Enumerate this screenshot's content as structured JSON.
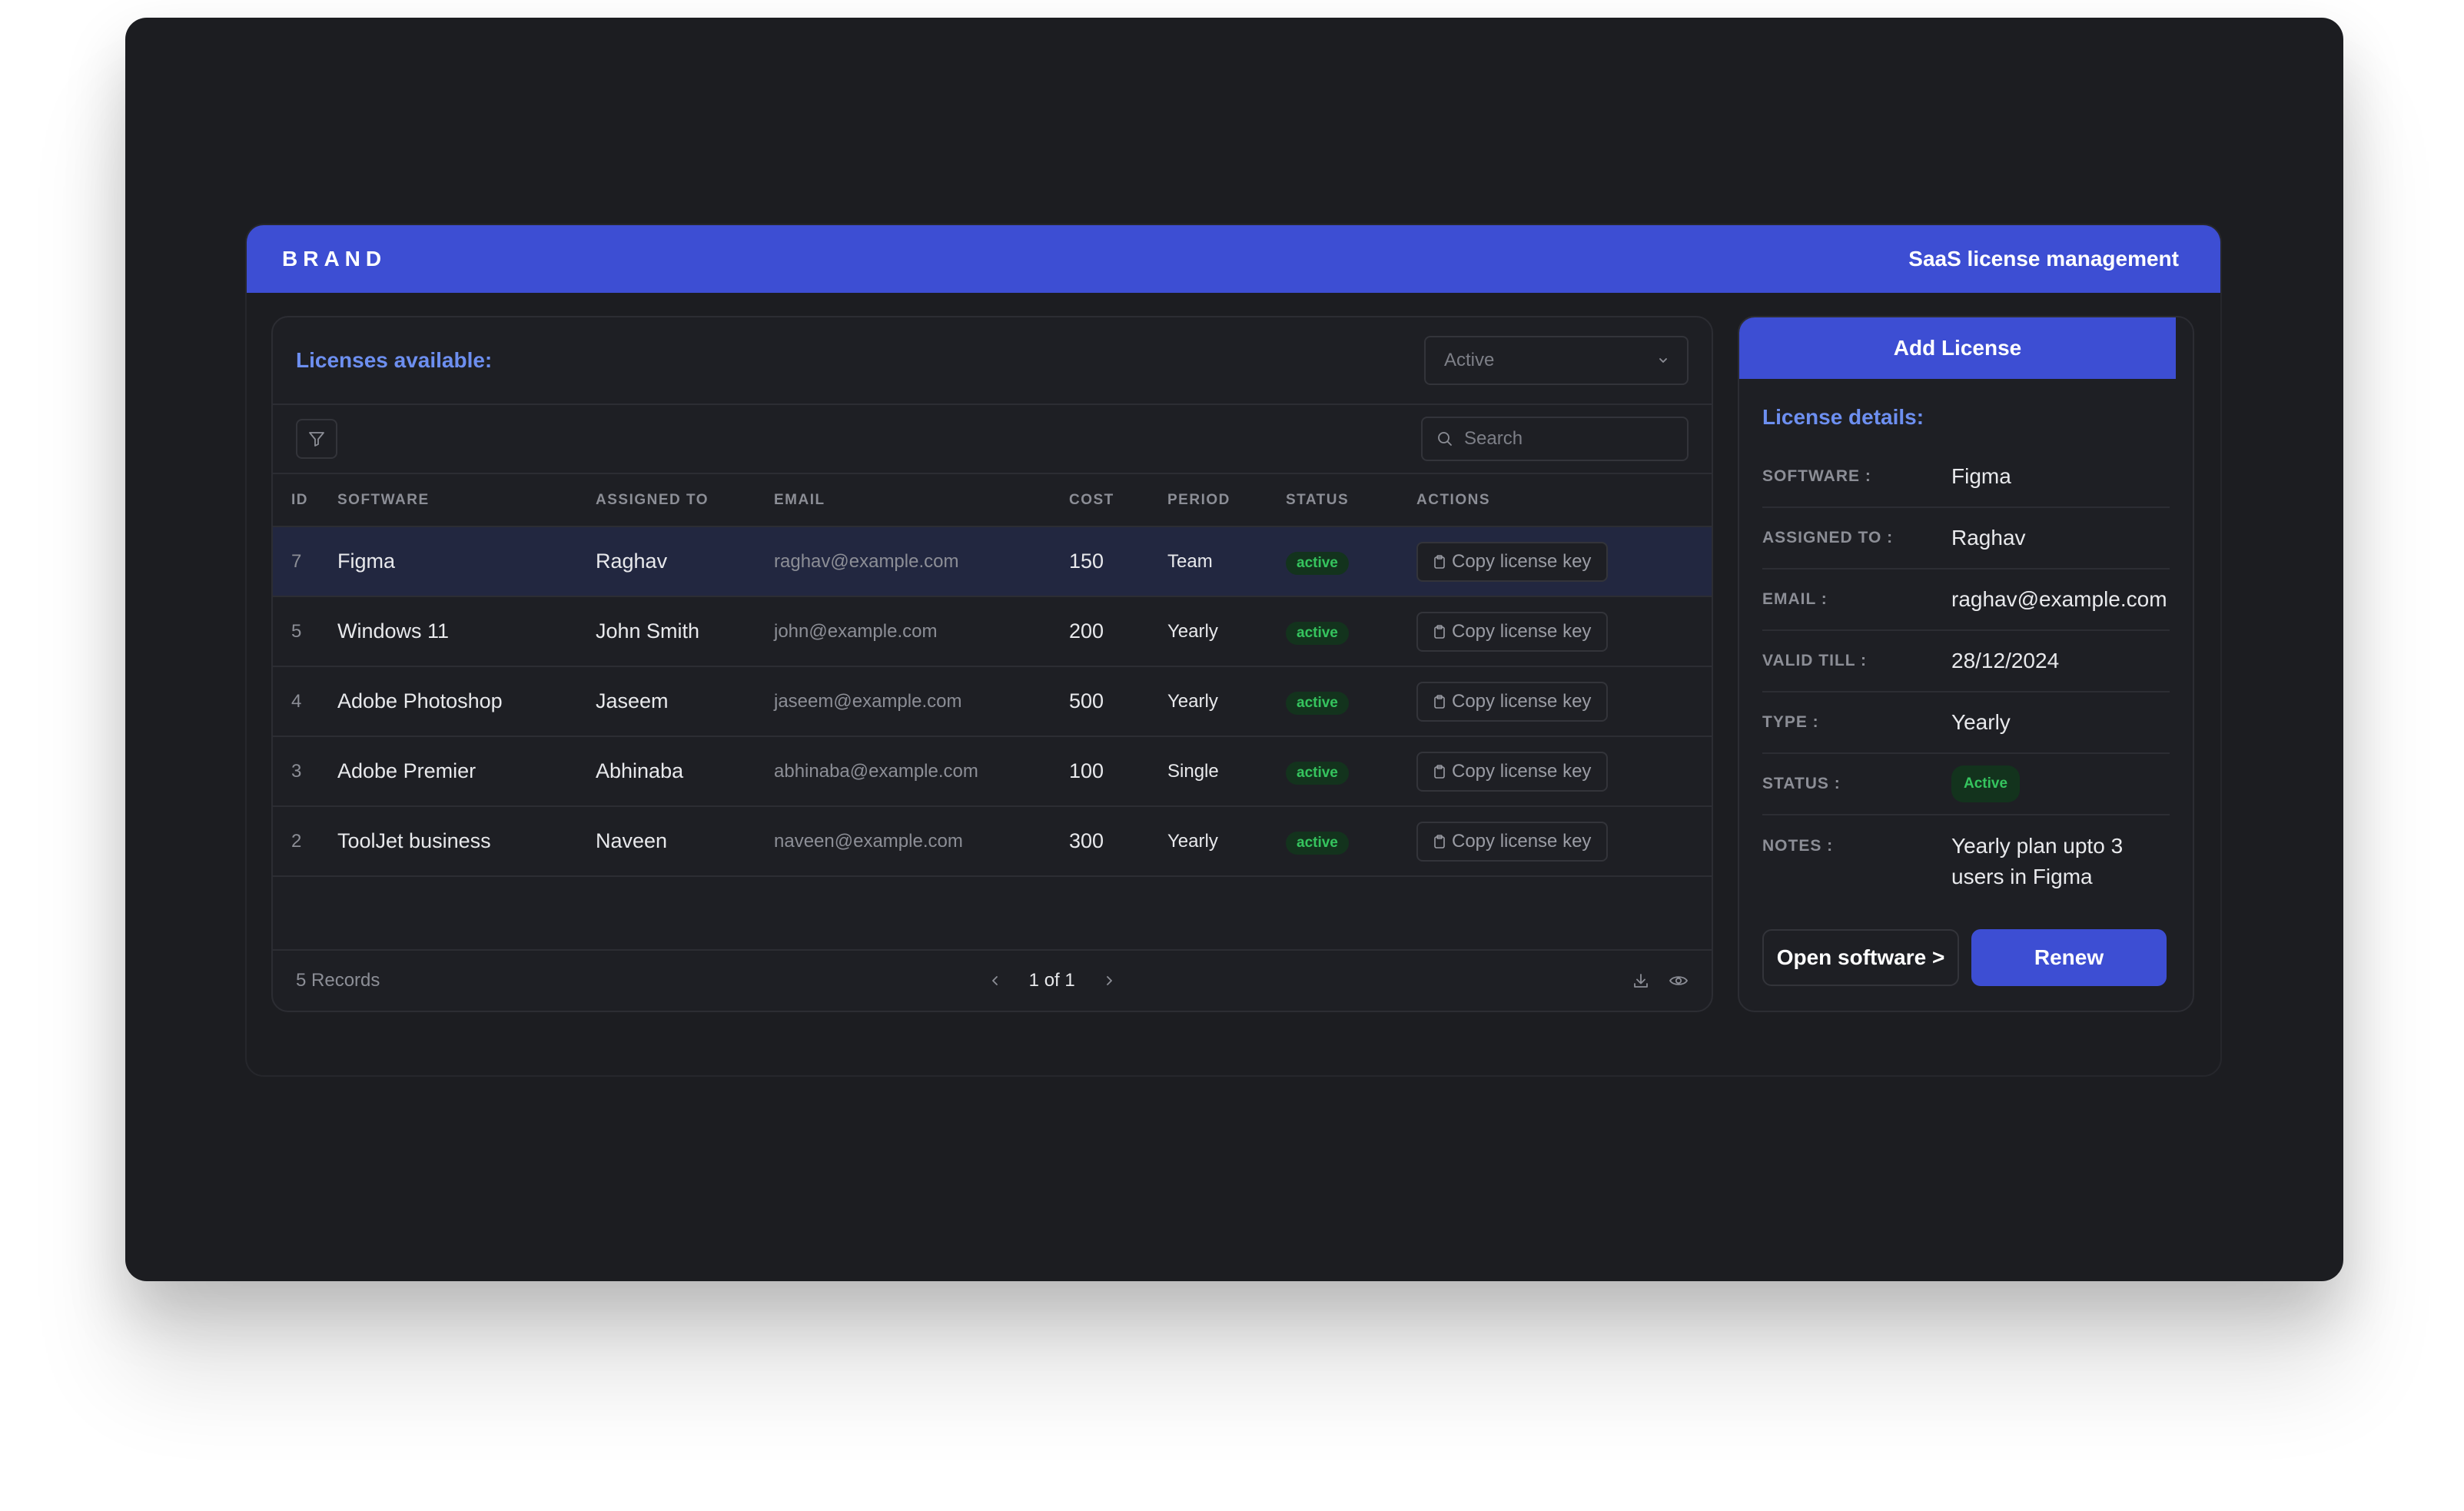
{
  "header": {
    "brand": "BRAND",
    "title": "SaaS license management",
    "color": "#3d4ed3"
  },
  "licenses_card": {
    "title": "Licenses available:",
    "status_filter": {
      "selected": "Active"
    },
    "search": {
      "placeholder": "Search"
    },
    "columns": [
      "ID",
      "SOFTWARE",
      "ASSIGNED TO",
      "EMAIL",
      "COST",
      "PERIOD",
      "STATUS",
      "ACTIONS"
    ],
    "rows": [
      {
        "id": "7",
        "software": "Figma",
        "assigned_to": "Raghav",
        "email": "raghav@example.com",
        "cost": "150",
        "period": "Team",
        "status": "active",
        "action": "Copy license key"
      },
      {
        "id": "5",
        "software": "Windows 11",
        "assigned_to": "John Smith",
        "email": "john@example.com",
        "cost": "200",
        "period": "Yearly",
        "status": "active",
        "action": "Copy license key"
      },
      {
        "id": "4",
        "software": "Adobe Photoshop",
        "assigned_to": "Jaseem",
        "email": "jaseem@example.com",
        "cost": "500",
        "period": "Yearly",
        "status": "active",
        "action": "Copy license key"
      },
      {
        "id": "3",
        "software": "Adobe Premier",
        "assigned_to": "Abhinaba",
        "email": "abhinaba@example.com",
        "cost": "100",
        "period": "Single",
        "status": "active",
        "action": "Copy license key"
      },
      {
        "id": "2",
        "software": "ToolJet business",
        "assigned_to": "Naveen",
        "email": "naveen@example.com",
        "cost": "300",
        "period": "Yearly",
        "status": "active",
        "action": "Copy license key"
      }
    ],
    "footer": {
      "records": "5 Records",
      "page": "1 of 1"
    },
    "icons": [
      "filter-icon",
      "search-icon",
      "chevron-down-icon",
      "clipboard-icon",
      "chevron-left-icon",
      "chevron-right-icon",
      "download-icon",
      "eye-icon"
    ]
  },
  "details_card": {
    "add_button": "Add License",
    "title": "License details:",
    "fields": [
      {
        "label": "SOFTWARE :",
        "value": "Figma"
      },
      {
        "label": "ASSIGNED TO :",
        "value": "Raghav"
      },
      {
        "label": "EMAIL :",
        "value": "raghav@example.com"
      },
      {
        "label": "VALID TILL :",
        "value": "28/12/2024"
      },
      {
        "label": "TYPE :",
        "value": "Yearly"
      },
      {
        "label": "STATUS :",
        "value": "Active"
      },
      {
        "label": "NOTES :",
        "value": "Yearly plan upto 3 users in Figma"
      }
    ],
    "open_button": "Open software >",
    "renew_button": "Renew"
  },
  "colors": {
    "background": "#1c1d21",
    "accent": "#3d4ed3",
    "heading_blue": "#6d8ff0",
    "status_green": "#35c45e",
    "selected_row": "#222740"
  }
}
